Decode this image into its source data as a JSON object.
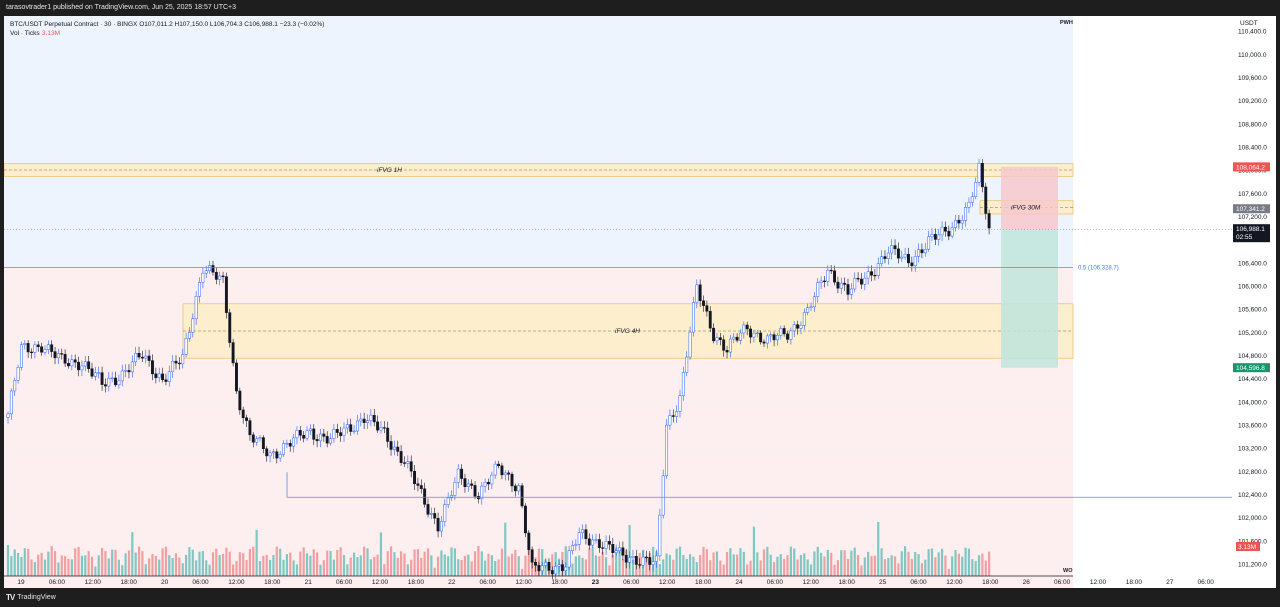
{
  "header": {
    "published": "tarasovtrader1 published on TradingView.com, Jun 25, 2025 18:57 UTC+3",
    "symbol_line": "BTC/USDT Perpetual Contract · 30 · BINGX  O107,011.2  H107,150.0  L106,704.3  C106,988.1  −23.3 (−0.02%)",
    "volume_label": "Vol · Ticks",
    "volume_value": "3.13M"
  },
  "footer": {
    "brand": "TradingView"
  },
  "colors": {
    "up": "#2962ff",
    "down": "#131722",
    "vol_up": "#7fc8c2",
    "vol_down": "#f0a0a0",
    "fvg_fill": "#fdeecb",
    "fvg_border": "#e8b94a",
    "line_blue": "#5b8ce0",
    "sell_badge": "#f05350",
    "buy_badge": "#17956f"
  },
  "chart_data": {
    "type": "candlestick",
    "currency_label": "USDT",
    "ylim": [
      101000,
      110600
    ],
    "yticks": [
      "110,400.0",
      "110,000.0",
      "109,600.0",
      "109,200.0",
      "108,800.0",
      "108,400.0",
      "108,000.0",
      "107,600.0",
      "107,200.0",
      "106,400.0",
      "106,000.0",
      "105,600.0",
      "105,200.0",
      "104,800.0",
      "104,400.0",
      "104,000.0",
      "103,600.0",
      "103,200.0",
      "102,800.0",
      "102,400.0",
      "102,000.0",
      "101,600.0",
      "101,200.0"
    ],
    "xticks": [
      "19",
      "06:00",
      "12:00",
      "18:00",
      "20",
      "06:00",
      "12:00",
      "18:00",
      "21",
      "06:00",
      "12:00",
      "18:00",
      "22",
      "06:00",
      "12:00",
      "18:00",
      "23",
      "06:00",
      "12:00",
      "18:00",
      "24",
      "06:00",
      "12:00",
      "18:00",
      "25",
      "06:00",
      "12:00",
      "18:00",
      "26",
      "06:00",
      "12:00",
      "18:00",
      "27",
      "06:00"
    ],
    "candle_anchors": [
      [
        0,
        103800
      ],
      [
        4,
        104900
      ],
      [
        10,
        105000
      ],
      [
        16,
        104700
      ],
      [
        22,
        104700
      ],
      [
        28,
        104300
      ],
      [
        34,
        104500
      ],
      [
        40,
        104800
      ],
      [
        46,
        104400
      ],
      [
        52,
        104750
      ],
      [
        58,
        106350
      ],
      [
        64,
        106050
      ],
      [
        68,
        104200
      ],
      [
        72,
        103400
      ],
      [
        78,
        103100
      ],
      [
        84,
        103300
      ],
      [
        90,
        103500
      ],
      [
        96,
        103350
      ],
      [
        100,
        103500
      ],
      [
        106,
        103750
      ],
      [
        112,
        103450
      ],
      [
        118,
        103000
      ],
      [
        124,
        102250
      ],
      [
        128,
        101900
      ],
      [
        134,
        102700
      ],
      [
        140,
        102450
      ],
      [
        146,
        102850
      ],
      [
        152,
        102550
      ],
      [
        156,
        101100
      ],
      [
        160,
        101150
      ],
      [
        166,
        101200
      ],
      [
        170,
        101700
      ],
      [
        176,
        101600
      ],
      [
        182,
        101350
      ],
      [
        188,
        101300
      ],
      [
        193,
        101200
      ],
      [
        196,
        103600
      ],
      [
        200,
        104100
      ],
      [
        205,
        105950
      ],
      [
        210,
        105200
      ],
      [
        214,
        104900
      ],
      [
        220,
        105300
      ],
      [
        226,
        105050
      ],
      [
        232,
        105200
      ],
      [
        238,
        105550
      ],
      [
        244,
        106300
      ],
      [
        250,
        105900
      ],
      [
        256,
        106200
      ],
      [
        262,
        106600
      ],
      [
        268,
        106450
      ],
      [
        274,
        106750
      ],
      [
        280,
        107000
      ],
      [
        286,
        107350
      ],
      [
        289,
        108000
      ],
      [
        292,
        107050
      ]
    ],
    "last_index": 292,
    "volume_max": 5.0,
    "volume_last": "3.13M",
    "levels": {
      "pwh": 110700,
      "ifvg_4h": [
        104760,
        105700
      ],
      "ifvg_1h": [
        107900,
        108120
      ],
      "ifvg_30m": [
        107250,
        107480
      ],
      "fib_05": 106328.7,
      "support": 102360,
      "current": 106988.1,
      "take_profit": 104596.8,
      "stop": 108064.2
    },
    "labels": {
      "pwh": "PWH",
      "wo": "WO",
      "ifvg_4h": "iFVG 4H",
      "ifvg_1h": "iFVG 1H",
      "ifvg_30m": "iFVG 30M",
      "fib": "0.5 (106,328.7)"
    },
    "badges": {
      "stop": "108,064.2",
      "mid": "107,341.2",
      "current": "106,988.1",
      "timer": "02:55",
      "target": "104,596.8",
      "volume": "3.13M"
    }
  }
}
